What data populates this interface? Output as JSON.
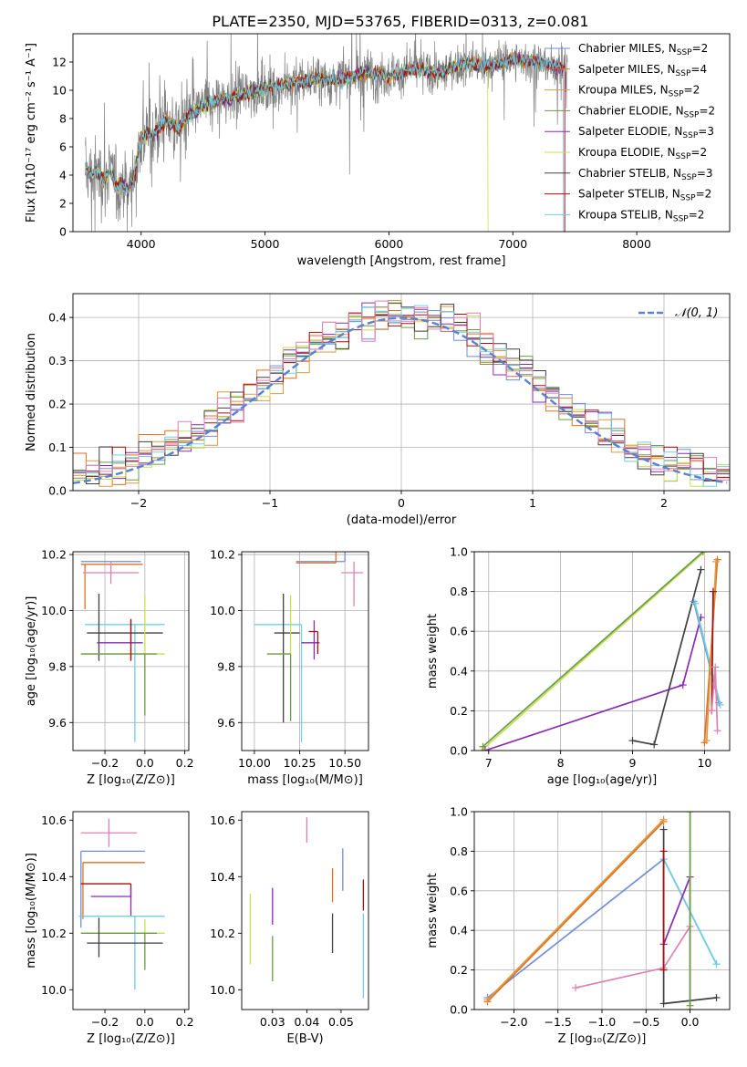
{
  "title": "PLATE=2350, MJD=53765, FIBERID=0313, z=0.081",
  "colors": {
    "chab_miles": "#6f8fd6",
    "salp_miles": "#e07020",
    "krou_miles": "#e09a40",
    "chab_elodie": "#6a9a4a",
    "salp_elodie": "#8a2ab0",
    "krou_elodie": "#c8e050",
    "chab_stelib": "#404040",
    "salp_stelib": "#a01010",
    "krou_stelib": "#70d0e0",
    "pink": "#e080b0",
    "spec_gray": "#808080",
    "normal_curve": "#5a80d0",
    "grid": "#b0b0b0"
  },
  "chart_data": [
    {
      "id": "spectrum",
      "type": "line",
      "xlabel": "wavelength [Angstrom, rest frame]",
      "ylabel": "Flux [fλ10⁻¹⁷ erg cm⁻² s⁻¹ A⁻¹]",
      "xlim": [
        3450,
        8750
      ],
      "ylim": [
        0,
        14
      ],
      "xticks": [
        4000,
        5000,
        6000,
        7000,
        8000
      ],
      "yticks": [
        0,
        2,
        4,
        6,
        8,
        10,
        12
      ],
      "model_anchor_points": {
        "x": [
          3550,
          3600,
          3650,
          3700,
          3750,
          3800,
          3850,
          3900,
          3950,
          4000,
          4100,
          4200,
          4300,
          4400,
          4500,
          4600,
          4800,
          5000,
          5200,
          5400,
          5600,
          5800,
          6000,
          6200,
          6400,
          6600,
          6800,
          7000,
          7200,
          7400,
          7420
        ],
        "y": [
          4.4,
          3.9,
          4.2,
          3.6,
          4.4,
          3.1,
          3.4,
          3.0,
          4.2,
          6.7,
          6.9,
          7.9,
          7.3,
          8.3,
          8.9,
          9.2,
          9.7,
          10.1,
          10.5,
          10.8,
          10.7,
          11.3,
          11.0,
          11.5,
          11.2,
          11.9,
          11.7,
          12.2,
          12.0,
          11.6,
          0.0
        ]
      },
      "drops_to_zero": [
        {
          "series": "Kroupa ELODIE",
          "x": 6800
        },
        {
          "series": "Chabrier MILES",
          "x": 7410
        },
        {
          "series": "Salpeter STELIB",
          "x": 7420
        }
      ],
      "legend": [
        {
          "label": "Chabrier MILES",
          "n": "2",
          "color_key": "chab_miles"
        },
        {
          "label": "Salpeter MILES",
          "n": "4",
          "color_key": "salp_miles"
        },
        {
          "label": "Kroupa MILES",
          "n": "2",
          "color_key": "krou_miles"
        },
        {
          "label": "Chabrier ELODIE",
          "n": "2",
          "color_key": "chab_elodie"
        },
        {
          "label": "Salpeter ELODIE",
          "n": "3",
          "color_key": "salp_elodie"
        },
        {
          "label": "Kroupa ELODIE",
          "n": "2",
          "color_key": "krou_elodie"
        },
        {
          "label": "Chabrier STELIB",
          "n": "3",
          "color_key": "chab_stelib"
        },
        {
          "label": "Salpeter STELIB",
          "n": "2",
          "color_key": "salp_stelib"
        },
        {
          "label": "Kroupa STELIB",
          "n": "2",
          "color_key": "krou_stelib"
        }
      ],
      "legend_prefix": "N",
      "legend_sub": "SSP",
      "legend_placement": "upper right",
      "grid": false
    },
    {
      "id": "residuals",
      "type": "step-histogram",
      "xlabel": "(data-model)/error",
      "ylabel": "Normed distribution",
      "xlim": [
        -2.5,
        2.5
      ],
      "ylim": [
        0,
        0.455
      ],
      "xticks": [
        -2,
        -1,
        0,
        1,
        2
      ],
      "yticks": [
        0.0,
        0.1,
        0.2,
        0.3,
        0.4
      ],
      "bin_width": 0.1,
      "series_color_keys": [
        "chab_miles",
        "salp_miles",
        "krou_miles",
        "chab_elodie",
        "salp_elodie",
        "krou_elodie",
        "chab_stelib",
        "salp_stelib",
        "krou_stelib",
        "pink"
      ],
      "reference_curve": {
        "label": "𝒩(0, 1)",
        "mu": 0,
        "sigma": 1,
        "style": "dashed",
        "color_key": "normal_curve"
      },
      "legend_placement": "upper right",
      "grid": true
    },
    {
      "id": "age_vs_Z",
      "type": "errorbar",
      "xlabel": "Z [log₁₀(Z/Z⊙)]",
      "ylabel": "age  [log₁₀(age/yr)]",
      "xlim": [
        -0.36,
        0.22
      ],
      "ylim": [
        9.5,
        10.21
      ],
      "xticks": [
        -0.2,
        0.0,
        0.2
      ],
      "yticks": [
        9.6,
        9.8,
        10.0,
        10.2
      ],
      "points": [
        {
          "color_key": "chab_miles",
          "x": -0.17,
          "xerr": [
            0.15,
            0.15
          ],
          "y": 10.175,
          "yerr": [
            0.0,
            0.0
          ]
        },
        {
          "color_key": "salp_miles",
          "x": -0.3,
          "xerr": [
            0.02,
            0.29
          ],
          "y": 10.165,
          "yerr": [
            0.16,
            0.0
          ]
        },
        {
          "color_key": "pink",
          "x": -0.17,
          "xerr": [
            0.14,
            0.14
          ],
          "y": 10.135,
          "yerr": [
            0.04,
            0.04
          ]
        },
        {
          "color_key": "krou_stelib",
          "x": -0.05,
          "xerr": [
            0.25,
            0.15
          ],
          "y": 9.95,
          "yerr": [
            0.42,
            0.0
          ]
        },
        {
          "color_key": "chab_stelib",
          "x": -0.23,
          "xerr": [
            0.06,
            0.32
          ],
          "y": 9.92,
          "yerr": [
            0.1,
            0.14
          ]
        },
        {
          "color_key": "salp_elodie",
          "x": -0.07,
          "xerr": [
            0.17,
            0.06
          ],
          "y": 9.885,
          "yerr": [
            0.06,
            0.08
          ]
        },
        {
          "color_key": "krou_elodie",
          "x": 0.0,
          "xerr": [
            0.32,
            0.1
          ],
          "y": 9.845,
          "yerr": [
            0.0,
            0.21
          ]
        },
        {
          "color_key": "chab_elodie",
          "x": 0.0,
          "xerr": [
            0.32,
            0.06
          ],
          "y": 9.845,
          "yerr": [
            0.22,
            0.0
          ]
        },
        {
          "color_key": "salp_stelib",
          "x": -0.07,
          "xerr": [
            0.0,
            0.0
          ],
          "y": 9.9,
          "yerr": [
            0.08,
            0.07
          ]
        }
      ],
      "grid": true
    },
    {
      "id": "age_vs_mass",
      "type": "errorbar",
      "xlabel": "mass [log₁₀(M/M⊙)]",
      "ylabel": "",
      "xlim": [
        9.93,
        10.63
      ],
      "ylim": [
        9.5,
        10.21
      ],
      "xticks": [
        10.0,
        10.25,
        10.5
      ],
      "yticks": [
        9.6,
        9.8,
        10.0,
        10.2
      ],
      "points": [
        {
          "color_key": "chab_miles",
          "x": 10.5,
          "xerr": [
            0.27,
            0.0
          ],
          "y": 10.175,
          "yerr": [
            0.0,
            0.23
          ]
        },
        {
          "color_key": "salp_miles",
          "x": 10.45,
          "xerr": [
            0.22,
            0.0
          ],
          "y": 10.17,
          "yerr": [
            0.0,
            0.16
          ]
        },
        {
          "color_key": "pink",
          "x": 10.55,
          "xerr": [
            0.07,
            0.05
          ],
          "y": 10.135,
          "yerr": [
            0.12,
            0.04
          ]
        },
        {
          "color_key": "krou_stelib",
          "x": 10.26,
          "xerr": [
            0.26,
            0.0
          ],
          "y": 9.95,
          "yerr": [
            0.42,
            0.0
          ]
        },
        {
          "color_key": "chab_stelib",
          "x": 10.16,
          "xerr": [
            0.05,
            0.09
          ],
          "y": 9.92,
          "yerr": [
            0.32,
            0.14
          ]
        },
        {
          "color_key": "salp_elodie",
          "x": 10.33,
          "xerr": [
            0.07,
            0.03
          ],
          "y": 9.885,
          "yerr": [
            0.06,
            0.08
          ]
        },
        {
          "color_key": "krou_elodie",
          "x": 10.2,
          "xerr": [
            0.05,
            0.0
          ],
          "y": 9.845,
          "yerr": [
            0.0,
            0.21
          ]
        },
        {
          "color_key": "chab_elodie",
          "x": 10.2,
          "xerr": [
            0.13,
            0.0
          ],
          "y": 9.845,
          "yerr": [
            0.24,
            0.0
          ]
        },
        {
          "color_key": "salp_stelib",
          "x": 10.35,
          "xerr": [
            0.05,
            0.0
          ],
          "y": 9.925,
          "yerr": [
            0.08,
            0.0
          ]
        }
      ],
      "grid": true
    },
    {
      "id": "weight_vs_age",
      "type": "line",
      "xlabel": "age  [log₁₀(age/yr)]",
      "ylabel": "mass weight",
      "xlim": [
        6.8,
        10.35
      ],
      "ylim": [
        0,
        1
      ],
      "xticks": [
        7,
        8,
        9,
        10
      ],
      "yticks": [
        0.0,
        0.2,
        0.4,
        0.6,
        0.8,
        1.0
      ],
      "series": [
        {
          "color_key": "krou_elodie",
          "x": [
            6.9,
            10.0
          ],
          "y": [
            0.0,
            1.0
          ]
        },
        {
          "color_key": "chab_elodie",
          "x": [
            6.92,
            9.98
          ],
          "y": [
            0.02,
            1.0
          ]
        },
        {
          "color_key": "salp_elodie",
          "x": [
            6.95,
            9.7,
            9.95
          ],
          "y": [
            0.0,
            0.33,
            0.67
          ]
        },
        {
          "color_key": "chab_stelib",
          "x": [
            9.0,
            9.3,
            9.95
          ],
          "y": [
            0.05,
            0.03,
            0.91
          ]
        },
        {
          "color_key": "chab_miles",
          "x": [
            9.85,
            10.2
          ],
          "y": [
            0.75,
            0.24
          ]
        },
        {
          "color_key": "krou_stelib",
          "x": [
            9.87,
            10.22
          ],
          "y": [
            0.74,
            0.23
          ]
        },
        {
          "color_key": "salp_miles",
          "x": [
            10.0,
            10.18
          ],
          "y": [
            0.04,
            0.96
          ]
        },
        {
          "color_key": "krou_miles",
          "x": [
            10.03,
            10.16
          ],
          "y": [
            0.05,
            0.95
          ]
        },
        {
          "color_key": "salp_stelib",
          "x": [
            10.1,
            10.12
          ],
          "y": [
            0.2,
            0.8
          ]
        },
        {
          "color_key": "pink",
          "x": [
            10.1,
            10.15,
            10.18
          ],
          "y": [
            0.2,
            0.42,
            0.1
          ]
        }
      ],
      "grid": true
    },
    {
      "id": "mass_vs_Z",
      "type": "errorbar",
      "xlabel": "Z [log₁₀(Z/Z⊙)]",
      "ylabel": "mass [log₁₀(M/M⊙)]",
      "xlim": [
        -0.36,
        0.22
      ],
      "ylim": [
        9.93,
        10.63
      ],
      "xticks": [
        -0.2,
        0.0,
        0.2
      ],
      "yticks": [
        10.0,
        10.2,
        10.4,
        10.6
      ],
      "points": [
        {
          "color_key": "pink",
          "x": -0.18,
          "xerr": [
            0.14,
            0.14
          ],
          "y": 10.555,
          "yerr": [
            0.05,
            0.05
          ]
        },
        {
          "color_key": "chab_miles",
          "x": -0.32,
          "xerr": [
            0.0,
            0.32
          ],
          "y": 10.49,
          "yerr": [
            0.27,
            0.0
          ]
        },
        {
          "color_key": "salp_miles",
          "x": -0.31,
          "xerr": [
            0.0,
            0.31
          ],
          "y": 10.45,
          "yerr": [
            0.2,
            0.0
          ]
        },
        {
          "color_key": "salp_stelib",
          "x": -0.07,
          "xerr": [
            0.25,
            0.0
          ],
          "y": 10.375,
          "yerr": [
            0.05,
            0.0
          ]
        },
        {
          "color_key": "salp_elodie",
          "x": -0.07,
          "xerr": [
            0.2,
            0.0
          ],
          "y": 10.33,
          "yerr": [
            0.07,
            0.03
          ]
        },
        {
          "color_key": "krou_stelib",
          "x": -0.05,
          "xerr": [
            0.28,
            0.15
          ],
          "y": 10.26,
          "yerr": [
            0.26,
            0.0
          ]
        },
        {
          "color_key": "krou_elodie",
          "x": 0.0,
          "xerr": [
            0.32,
            0.1
          ],
          "y": 10.2,
          "yerr": [
            0.0,
            0.05
          ]
        },
        {
          "color_key": "chab_elodie",
          "x": 0.0,
          "xerr": [
            0.32,
            0.06
          ],
          "y": 10.2,
          "yerr": [
            0.13,
            0.0
          ]
        },
        {
          "color_key": "chab_stelib",
          "x": -0.23,
          "xerr": [
            0.06,
            0.32
          ],
          "y": 10.165,
          "yerr": [
            0.05,
            0.09
          ]
        }
      ],
      "grid": false
    },
    {
      "id": "mass_vs_ebv",
      "type": "errorbar",
      "xlabel": "E(B-V)",
      "ylabel": "",
      "xlim": [
        0.021,
        0.058
      ],
      "ylim": [
        9.93,
        10.63
      ],
      "xticks": [
        0.03,
        0.04,
        0.05
      ],
      "yticks": [
        10.0,
        10.2,
        10.4,
        10.6
      ],
      "points": [
        {
          "color_key": "pink",
          "x": 0.04,
          "xerr": [
            0,
            0
          ],
          "y": 10.56,
          "yerr": [
            0.04,
            0.05
          ]
        },
        {
          "color_key": "chab_miles",
          "x": 0.0505,
          "xerr": [
            0,
            0
          ],
          "y": 10.43,
          "yerr": [
            0.08,
            0.07
          ]
        },
        {
          "color_key": "salp_miles",
          "x": 0.0475,
          "xerr": [
            0,
            0
          ],
          "y": 10.43,
          "yerr": [
            0.12,
            0.0
          ]
        },
        {
          "color_key": "salp_stelib",
          "x": 0.0565,
          "xerr": [
            0,
            0
          ],
          "y": 10.34,
          "yerr": [
            0.06,
            0.05
          ]
        },
        {
          "color_key": "salp_elodie",
          "x": 0.03,
          "xerr": [
            0,
            0
          ],
          "y": 10.3,
          "yerr": [
            0.07,
            0.06
          ]
        },
        {
          "color_key": "krou_elodie",
          "x": 0.0235,
          "xerr": [
            0,
            0
          ],
          "y": 10.22,
          "yerr": [
            0.13,
            0.12
          ]
        },
        {
          "color_key": "chab_stelib",
          "x": 0.0475,
          "xerr": [
            0,
            0
          ],
          "y": 10.19,
          "yerr": [
            0.06,
            0.08
          ]
        },
        {
          "color_key": "chab_elodie",
          "x": 0.03,
          "xerr": [
            0,
            0
          ],
          "y": 10.13,
          "yerr": [
            0.1,
            0.06
          ]
        },
        {
          "color_key": "krou_stelib",
          "x": 0.0565,
          "xerr": [
            0,
            0
          ],
          "y": 10.1,
          "yerr": [
            0.13,
            0.17
          ]
        }
      ],
      "grid": false
    },
    {
      "id": "weight_vs_Z",
      "type": "line",
      "xlabel": "Z [log₁₀(Z/Z⊙)]",
      "ylabel": "mass weight",
      "xlim": [
        -2.45,
        0.45
      ],
      "ylim": [
        0,
        1
      ],
      "xticks": [
        -2.0,
        -1.5,
        -1.0,
        -0.5,
        0.0
      ],
      "yticks": [
        0.0,
        0.2,
        0.4,
        0.6,
        0.8,
        1.0
      ],
      "series": [
        {
          "color_key": "chab_miles",
          "x": [
            -2.3,
            -0.3,
            0.3
          ],
          "y": [
            0.06,
            0.76,
            0.23
          ]
        },
        {
          "color_key": "krou_stelib",
          "x": [
            -0.3,
            0.3
          ],
          "y": [
            0.76,
            0.23
          ]
        },
        {
          "color_key": "salp_miles",
          "x": [
            -2.3,
            -0.3
          ],
          "y": [
            0.04,
            0.95
          ]
        },
        {
          "color_key": "krou_miles",
          "x": [
            -2.3,
            -0.3
          ],
          "y": [
            0.05,
            0.96
          ]
        },
        {
          "color_key": "chab_stelib",
          "x": [
            -0.3,
            -0.3,
            0.3
          ],
          "y": [
            0.91,
            0.03,
            0.06
          ]
        },
        {
          "color_key": "salp_elodie",
          "x": [
            -0.3,
            0.0,
            0.0
          ],
          "y": [
            0.33,
            0.67,
            0.0
          ]
        },
        {
          "color_key": "pink",
          "x": [
            -1.3,
            -0.3,
            0.0
          ],
          "y": [
            0.11,
            0.21,
            0.42
          ]
        },
        {
          "color_key": "krou_elodie",
          "x": [
            0.0,
            0.0
          ],
          "y": [
            0.0,
            1.0
          ]
        },
        {
          "color_key": "chab_elodie",
          "x": [
            0.0,
            0.0
          ],
          "y": [
            0.02,
            1.0
          ]
        },
        {
          "color_key": "salp_stelib",
          "x": [
            -0.3,
            -0.3
          ],
          "y": [
            0.2,
            0.8
          ]
        }
      ],
      "grid": true
    }
  ]
}
